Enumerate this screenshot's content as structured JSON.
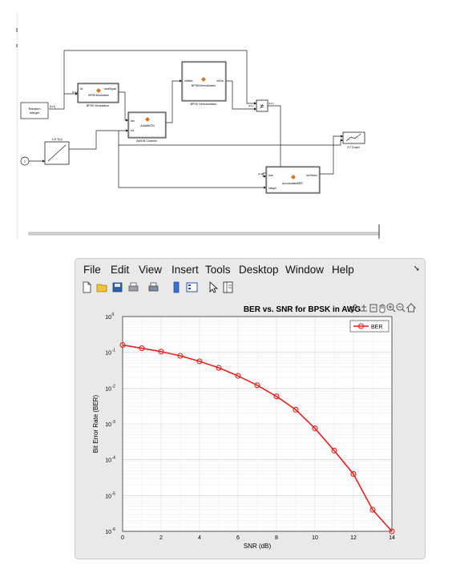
{
  "diagram": {
    "blocks": {
      "random_integer": "Random\nInteger",
      "bpsk_modulation_inner": "BPSKModulator",
      "bpsk_modulation_in": "txt",
      "bpsk_modulation_out": "modSignal",
      "bpsk_modulation_caption": "BPSK Modulation",
      "awgn_inner": "AddAWGN",
      "awgn_in": "sim",
      "awgn_caption": "AWGN Channel",
      "bpsk_demod_inner": "BPSKDemodulator",
      "bpsk_demod_in": "rxbitted",
      "bpsk_demod_out": "bitOut",
      "bpsk_demod_caption": "BPSK Demodulation",
      "ramp_label": "1-D T(u)",
      "clock_label": "",
      "xy_graph_caption": "XY Graph",
      "ber_inner": "accumulateBER",
      "ber_in_1": "rbar",
      "ber_in_2": "Integer",
      "ber_out": "berVector",
      "sig_label_1": "[1x1]",
      "sig_label_2": "[1x1]",
      "sig_label_3": "[1x1]",
      "sig_label_4": "[1x1]",
      "sig_label_5": "[1x1]",
      "neq_symbol": "≠"
    }
  },
  "figure_window": {
    "menu": [
      "File",
      "Edit",
      "View",
      "Insert",
      "Tools",
      "Desktop",
      "Window",
      "Help"
    ],
    "menu_arrow": "➘",
    "toolbar_icons": [
      "new-file-icon",
      "open-folder-icon",
      "save-icon",
      "print-icon",
      "print-preview-icon",
      "link-plot-icon",
      "insert-colorbar-icon",
      "insert-legend-icon",
      "pointer-icon",
      "property-inspector-icon"
    ],
    "axes_toolbar_icons": [
      "brush-icon",
      "data-tips-icon",
      "restore-view-icon",
      "pan-icon",
      "zoom-in-icon",
      "zoom-out-icon",
      "home-icon"
    ]
  },
  "chart_data": {
    "type": "line",
    "title": "BER vs. SNR for BPSK in AWGN",
    "title_visible": "BER vs. SNR for BPSK in AWG",
    "xlabel": "SNR (dB)",
    "ylabel": "Bit Error Rate (BER)",
    "x_ticks": [
      "0",
      "2",
      "4",
      "6",
      "8",
      "10",
      "12",
      "14"
    ],
    "y_ticks": [
      "10^0",
      "10^-1",
      "10^-2",
      "10^-3",
      "10^-4",
      "10^-5",
      "10^-6"
    ],
    "y_tick_base": "10",
    "y_tick_exps": [
      "0",
      "-1",
      "-2",
      "-3",
      "-4",
      "-5",
      "-6"
    ],
    "xlim": [
      0,
      14
    ],
    "ylim": [
      1e-06,
      1
    ],
    "yscale": "log",
    "grid": true,
    "legend": "top-right",
    "series": [
      {
        "name": "BER",
        "color": "#e8201e",
        "marker": "circle",
        "x": [
          0,
          1,
          2,
          3,
          4,
          5,
          6,
          7,
          8,
          9,
          10,
          11,
          12,
          13,
          14
        ],
        "y": [
          0.16,
          0.13,
          0.105,
          0.08,
          0.056,
          0.037,
          0.022,
          0.012,
          0.0059,
          0.0025,
          0.00075,
          0.00018,
          4e-05,
          4e-06,
          1e-06
        ]
      }
    ]
  }
}
